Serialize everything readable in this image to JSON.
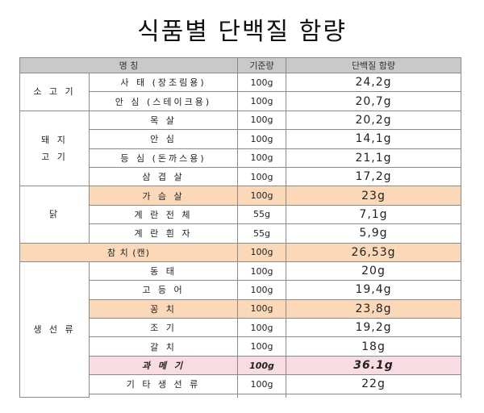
{
  "title": "식품별 단백질 함량",
  "headers": {
    "name": "명 칭",
    "amount": "기준량",
    "protein": "단백질 함량"
  },
  "groups": {
    "beef": "소 고 기",
    "pork_line1": "돼 지",
    "pork_line2": "고 기",
    "chicken": "닭",
    "tuna": "참 치 (캔)",
    "fish": "생 선 류"
  },
  "rows": [
    {
      "name": "사 태 (장조림용)",
      "amount": "100g",
      "protein": "24,2g"
    },
    {
      "name": "안 심 (스테이크용)",
      "amount": "100g",
      "protein": "20,7g"
    },
    {
      "name": "목 살",
      "amount": "100g",
      "protein": "20,2g"
    },
    {
      "name": "안 심",
      "amount": "100g",
      "protein": "14,1g"
    },
    {
      "name": "등 심 (돈까스용)",
      "amount": "100g",
      "protein": "21,1g"
    },
    {
      "name": "삼 겹 살",
      "amount": "100g",
      "protein": "17,2g"
    },
    {
      "name": "가 슴 살",
      "amount": "100g",
      "protein": "23g"
    },
    {
      "name": "계 란 전 체",
      "amount": "55g",
      "protein": "7,1g"
    },
    {
      "name": "계 란 흰 자",
      "amount": "55g",
      "protein": "5,9g"
    },
    {
      "name": "",
      "amount": "100g",
      "protein": "26,53g"
    },
    {
      "name": "동 태",
      "amount": "100g",
      "protein": "20g"
    },
    {
      "name": "고 등 어",
      "amount": "100g",
      "protein": "19,4g"
    },
    {
      "name": "꽁 치",
      "amount": "100g",
      "protein": "23,8g"
    },
    {
      "name": "조 기",
      "amount": "100g",
      "protein": "19,2g"
    },
    {
      "name": "갈 치",
      "amount": "100g",
      "protein": "18g"
    },
    {
      "name": "과 메 기",
      "amount": "100g",
      "protein": "36.1g"
    },
    {
      "name": "기 타 생 선 류",
      "amount": "100g",
      "protein": "22g"
    }
  ],
  "colors": {
    "header_bg": "#c9c9c9",
    "highlight_orange": "#fbd8b7",
    "highlight_pink": "#f8dce4"
  }
}
